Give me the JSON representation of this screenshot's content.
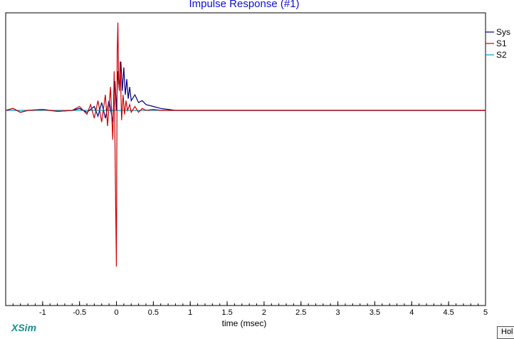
{
  "title": "Impulse Response (#1)",
  "brand": "XSim",
  "hold_button": "Hol",
  "chart_data": {
    "type": "line",
    "title": "Impulse Response (#1)",
    "xlabel": "time (msec)",
    "ylabel": "",
    "xlim": [
      -1.5,
      5
    ],
    "ylim": [
      -1.0,
      0.5
    ],
    "xticks": [
      -1,
      -0.5,
      0,
      0.5,
      1,
      1.5,
      2,
      2.5,
      3,
      3.5,
      4,
      4.5,
      5
    ],
    "xtick_labels": [
      "-1",
      "-0.5",
      "0",
      "0.5",
      "1",
      "1.5",
      "2",
      "2.5",
      "3",
      "3.5",
      "4",
      "4.5",
      "5"
    ],
    "grid": false,
    "legend": "right",
    "series": [
      {
        "name": "Sys",
        "color": "#000080",
        "x": [
          -1.5,
          -1.4,
          -1.3,
          -1.2,
          -1.0,
          -0.8,
          -0.6,
          -0.5,
          -0.4,
          -0.3,
          -0.25,
          -0.2,
          -0.15,
          -0.1,
          -0.05,
          -0.02,
          0.0,
          0.02,
          0.04,
          0.06,
          0.08,
          0.1,
          0.12,
          0.14,
          0.16,
          0.18,
          0.2,
          0.25,
          0.3,
          0.35,
          0.4,
          0.5,
          0.6,
          0.7,
          0.8,
          1.0,
          1.5,
          2.0,
          3.0,
          4.0,
          5.0
        ],
        "y": [
          0.0,
          0.01,
          -0.01,
          0.0,
          0.005,
          -0.005,
          0.0,
          0.01,
          -0.01,
          0.02,
          -0.03,
          0.04,
          -0.04,
          0.05,
          -0.06,
          0.15,
          0.0,
          0.2,
          0.1,
          0.25,
          0.1,
          0.22,
          0.08,
          0.16,
          0.06,
          0.12,
          0.05,
          0.08,
          0.04,
          0.05,
          0.03,
          0.02,
          0.01,
          0.005,
          0.0,
          0.0,
          0.0,
          0.0,
          0.0,
          0.0,
          0.0
        ]
      },
      {
        "name": "S1",
        "color": "#cc0000",
        "x": [
          -1.5,
          -1.4,
          -1.3,
          -1.2,
          -1.0,
          -0.8,
          -0.6,
          -0.5,
          -0.4,
          -0.35,
          -0.3,
          -0.25,
          -0.2,
          -0.15,
          -0.12,
          -0.08,
          -0.05,
          -0.03,
          -0.01,
          0.0,
          0.01,
          0.02,
          0.03,
          0.04,
          0.05,
          0.07,
          0.09,
          0.11,
          0.13,
          0.15,
          0.18,
          0.2,
          0.25,
          0.3,
          0.35,
          0.4,
          0.5,
          0.6,
          0.7,
          1.0,
          1.5,
          2.0,
          3.0,
          4.0,
          5.0
        ],
        "y": [
          0.0,
          0.01,
          -0.01,
          0.0,
          0.005,
          -0.005,
          0.0,
          0.02,
          -0.02,
          0.03,
          -0.04,
          0.05,
          -0.06,
          0.08,
          -0.08,
          0.12,
          -0.15,
          0.2,
          -0.5,
          -0.8,
          0.3,
          0.45,
          0.15,
          0.1,
          0.25,
          -0.05,
          0.08,
          -0.02,
          0.05,
          0.0,
          0.03,
          -0.01,
          0.02,
          -0.01,
          0.01,
          0.0,
          0.005,
          0.0,
          0.0,
          0.0,
          0.0,
          0.0,
          0.0,
          0.0,
          0.0
        ]
      },
      {
        "name": "S2",
        "color": "#00a0c0",
        "x": [
          -1.5,
          0.0,
          1.0,
          2.0,
          3.0,
          4.0,
          5.0
        ],
        "y": [
          0.0,
          0.0,
          0.0,
          0.0,
          0.0,
          0.0,
          0.0
        ]
      }
    ]
  }
}
